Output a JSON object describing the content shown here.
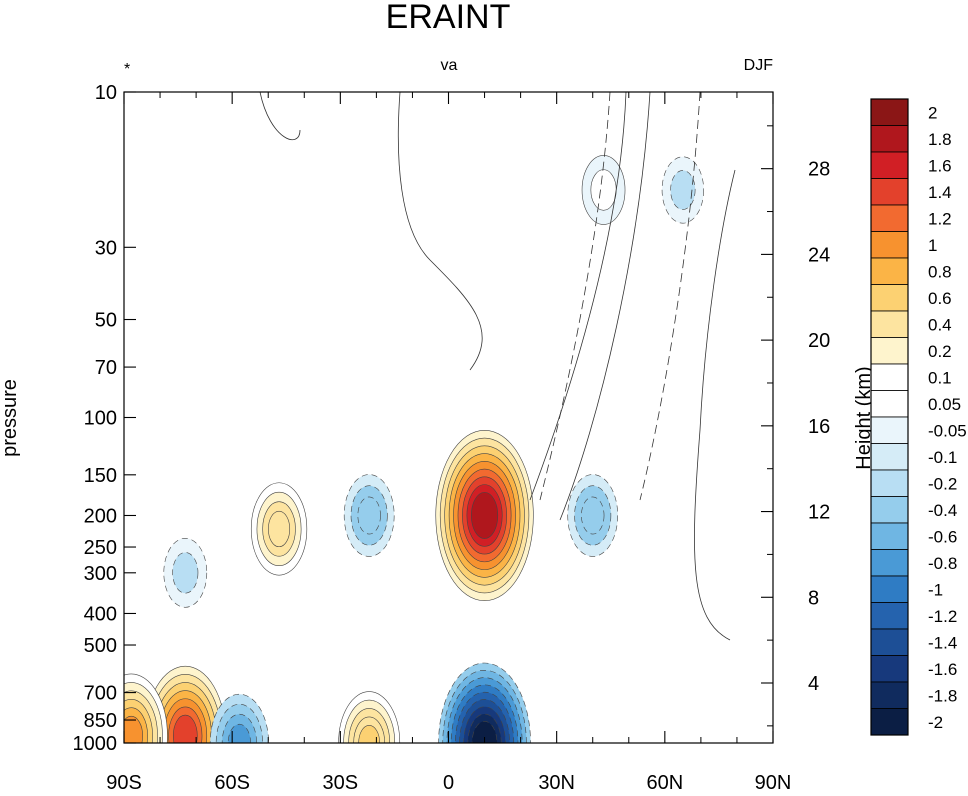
{
  "chart_data": {
    "type": "heatmap",
    "title": "ERAINT",
    "left_string": "*",
    "center_string": "va",
    "right_string": "DJF",
    "ylabel": "pressure",
    "y2label": "Height (km)",
    "x_ticks": [
      "90S",
      "60S",
      "30S",
      "0",
      "30N",
      "60N",
      "90N"
    ],
    "x_tick_values": [
      -90,
      -60,
      -30,
      0,
      30,
      60,
      90
    ],
    "xlim": [
      -90,
      90
    ],
    "y_ticks": [
      "10",
      "30",
      "50",
      "70",
      "100",
      "150",
      "200",
      "250",
      "300",
      "400",
      "500",
      "700",
      "850",
      "1000"
    ],
    "y_tick_values": [
      10,
      30,
      50,
      70,
      100,
      150,
      200,
      250,
      300,
      400,
      500,
      700,
      850,
      1000
    ],
    "ylim": [
      1000,
      10
    ],
    "y_scale": "log",
    "y2_ticks": [
      "28",
      "24",
      "20",
      "16",
      "12",
      "8",
      "4"
    ],
    "y2_tick_values": [
      28,
      24,
      20,
      16,
      12,
      8,
      4
    ],
    "colorbar_levels": [
      "2",
      "1.8",
      "1.6",
      "1.4",
      "1.2",
      "1",
      "0.8",
      "0.6",
      "0.4",
      "0.2",
      "0.1",
      "0.05",
      "-0.05",
      "-0.1",
      "-0.2",
      "-0.4",
      "-0.6",
      "-0.8",
      "-1",
      "-1.2",
      "-1.4",
      "-1.6",
      "-1.8",
      "-2"
    ],
    "colorbar_colors": [
      "#8b1616",
      "#b0171d",
      "#d11f25",
      "#e3412c",
      "#f26a30",
      "#f7922f",
      "#fbb446",
      "#fcd172",
      "#fde4a0",
      "#fef4cd",
      "#ffffff",
      "#ffffff",
      "#eaf5fb",
      "#d5ecf7",
      "#b8def3",
      "#95cdec",
      "#6fb6e3",
      "#4a9ad6",
      "#2f7cc4",
      "#2563ae",
      "#1d4f96",
      "#17397c",
      "#102b5e",
      "#0b1e44"
    ],
    "features": [
      {
        "lat": 10,
        "p": 200,
        "value": 2.2
      },
      {
        "lat": -47,
        "p": 220,
        "value": 0.7
      },
      {
        "lat": -22,
        "p": 200,
        "value": -0.5
      },
      {
        "lat": 40,
        "p": 200,
        "value": -0.5
      },
      {
        "lat": -73,
        "p": 300,
        "value": -0.25
      },
      {
        "lat": 10,
        "p": 1000,
        "value": -2.0
      },
      {
        "lat": -22,
        "p": 1000,
        "value": 0.9
      },
      {
        "lat": -73,
        "p": 950,
        "value": 1.6
      },
      {
        "lat": -88,
        "p": 950,
        "value": 1.3
      },
      {
        "lat": -58,
        "p": 1000,
        "value": -0.8
      },
      {
        "lat": 43,
        "p": 20,
        "value": 0.25
      },
      {
        "lat": 65,
        "p": 20,
        "value": -0.2
      }
    ]
  }
}
